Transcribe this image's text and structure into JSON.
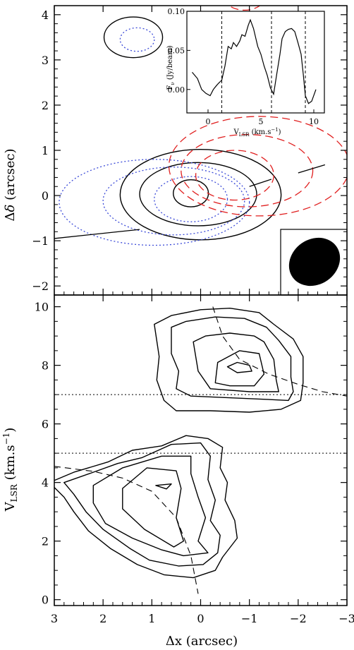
{
  "chart_data": [
    {
      "type": "contour",
      "panel": "top",
      "xlabel": "Δx (arcsec)",
      "ylabel": "Δδ (arcsec)",
      "xlim": [
        3,
        -3
      ],
      "ylim": [
        -2.2,
        4.2
      ],
      "xticks": [
        "3",
        "2",
        "1",
        "0",
        "−1",
        "−2",
        "−3"
      ],
      "yticks": [
        "−2",
        "−1",
        "0",
        "1",
        "2",
        "3",
        "4"
      ],
      "position_angle_line": [
        [
          3.0,
          -0.95
        ],
        [
          1.25,
          -0.75
        ],
        [
          -1.0,
          0.2
        ],
        [
          -1.45,
          0.36
        ],
        [
          -2.0,
          0.5
        ],
        [
          -2.55,
          0.68
        ]
      ],
      "series": [
        {
          "style": "solid",
          "color": "#000000",
          "contours": [
            {
              "cx": 0.2,
              "cy": 0.05,
              "rx": 0.36,
              "ry": 0.3
            },
            {
              "cx": 0.05,
              "cy": 0.03,
              "rx": 1.2,
              "ry": 0.7
            },
            {
              "cx": 0.0,
              "cy": 0.02,
              "rx": 1.65,
              "ry": 1.0
            },
            {
              "cx": 1.38,
              "cy": 3.5,
              "rx": 0.6,
              "ry": 0.45
            }
          ]
        },
        {
          "style": "dotted",
          "color": "#3c4bd8",
          "contours": [
            {
              "cx": 0.2,
              "cy": -0.08,
              "rx": 0.75,
              "ry": 0.5
            },
            {
              "cx": 0.55,
              "cy": -0.12,
              "rx": 1.45,
              "ry": 0.75
            },
            {
              "cx": 0.95,
              "cy": -0.15,
              "rx": 1.95,
              "ry": 0.95
            },
            {
              "cx": 1.3,
              "cy": 3.45,
              "rx": 0.35,
              "ry": 0.26
            }
          ]
        },
        {
          "style": "dashed",
          "color": "#e01e1e",
          "contours": [
            {
              "cx": -0.7,
              "cy": 0.45,
              "rx": 0.8,
              "ry": 0.55
            },
            {
              "cx": -0.95,
              "cy": 0.55,
              "rx": 1.35,
              "ry": 0.8
            },
            {
              "cx": -1.2,
              "cy": 0.65,
              "rx": 1.85,
              "ry": 1.1
            },
            {
              "cx": -0.9,
              "cy": 4.45,
              "rx": 0.45,
              "ry": 0.35
            }
          ]
        }
      ],
      "beam": {
        "cx": -2.4,
        "cy": -1.3,
        "rx": 0.5,
        "ry": 0.6
      },
      "inset": {
        "type": "line",
        "xlabel": "V_LSR (km.s⁻¹)",
        "ylabel": "F_ν (Jy/beam)",
        "xlim": [
          -2,
          11
        ],
        "ylim": [
          -0.03,
          0.1
        ],
        "xticks": [
          "0",
          "5",
          "10"
        ],
        "yticks": [
          "0.00",
          "0.05",
          "0.10"
        ],
        "vlines": [
          1.3,
          6.0,
          9.2
        ],
        "x": [
          -1.5,
          -1.0,
          -0.6,
          -0.2,
          0.2,
          0.5,
          0.8,
          1.0,
          1.3,
          1.6,
          1.9,
          2.2,
          2.4,
          2.7,
          3.0,
          3.2,
          3.5,
          3.8,
          4.0,
          4.3,
          4.7,
          5.0,
          5.3,
          5.6,
          5.9,
          6.2,
          6.5,
          6.8,
          7.0,
          7.3,
          7.6,
          7.9,
          8.2,
          8.5,
          8.8,
          9.0,
          9.2,
          9.5,
          9.8,
          10.2
        ],
        "y": [
          0.022,
          0.014,
          0.0,
          -0.005,
          -0.008,
          0.0,
          0.005,
          0.008,
          0.012,
          0.03,
          0.055,
          0.052,
          0.06,
          0.055,
          0.062,
          0.07,
          0.068,
          0.082,
          0.089,
          0.078,
          0.055,
          0.045,
          0.03,
          0.018,
          0.002,
          -0.006,
          0.02,
          0.045,
          0.065,
          0.074,
          0.077,
          0.078,
          0.074,
          0.06,
          0.045,
          0.02,
          -0.008,
          -0.018,
          -0.015,
          0.0
        ]
      }
    },
    {
      "type": "contour",
      "panel": "bottom",
      "xlabel": "Δx (arcsec)",
      "ylabel": "V_LSR (km.s⁻¹)",
      "xlim": [
        3,
        -3
      ],
      "ylim": [
        -0.2,
        10.4
      ],
      "xticks": [
        "3",
        "2",
        "1",
        "0",
        "−1",
        "−2",
        "−3"
      ],
      "yticks": [
        "0",
        "2",
        "4",
        "6",
        "8",
        "10"
      ],
      "hlines": [
        5.0,
        7.0
      ],
      "dashed_curve": [
        [
          3.0,
          4.55
        ],
        [
          2.2,
          4.38
        ],
        [
          1.6,
          4.15
        ],
        [
          1.0,
          3.7
        ],
        [
          0.5,
          2.8
        ],
        [
          0.2,
          1.5
        ],
        [
          0.05,
          0.2
        ]
      ],
      "dashed_curve_upper": [
        [
          -0.25,
          10.0
        ],
        [
          -0.45,
          9.0
        ],
        [
          -0.8,
          8.2
        ],
        [
          -1.4,
          7.7
        ],
        [
          -2.0,
          7.35
        ],
        [
          -2.5,
          7.1
        ],
        [
          -3.0,
          6.95
        ]
      ],
      "series": [
        {
          "style": "solid",
          "color": "#000000",
          "contours": [
            {
              "points": [
                [
                  0.92,
                  3.9
                ],
                [
                  0.6,
                  3.95
                ],
                [
                  0.7,
                  3.78
                ],
                [
                  0.92,
                  3.9
                ]
              ]
            },
            {
              "points": [
                [
                  -1.0,
                  8.0
                ],
                [
                  -0.75,
                  8.1
                ],
                [
                  -0.55,
                  7.95
                ],
                [
                  -0.75,
                  7.75
                ],
                [
                  -1.05,
                  7.8
                ],
                [
                  -1.0,
                  8.0
                ]
              ]
            },
            {
              "points": [
                [
                  1.6,
                  3.8
                ],
                [
                  1.1,
                  4.5
                ],
                [
                  0.5,
                  4.4
                ],
                [
                  0.4,
                  3.8
                ],
                [
                  0.5,
                  2.8
                ],
                [
                  0.35,
                  2.0
                ],
                [
                  0.55,
                  1.8
                ],
                [
                  1.15,
                  2.4
                ],
                [
                  1.6,
                  3.1
                ],
                [
                  1.6,
                  3.8
                ]
              ]
            },
            {
              "points": [
                [
                  -0.35,
                  8.1
                ],
                [
                  -0.8,
                  8.5
                ],
                [
                  -1.2,
                  8.4
                ],
                [
                  -1.3,
                  7.7
                ],
                [
                  -1.1,
                  7.3
                ],
                [
                  -0.6,
                  7.3
                ],
                [
                  -0.3,
                  7.4
                ],
                [
                  -0.35,
                  8.1
                ]
              ]
            }
          ]
        },
        {
          "style": "solid",
          "color": "#000000",
          "contours": [
            {
              "points": [
                [
                  2.2,
                  3.9
                ],
                [
                  1.6,
                  4.5
                ],
                [
                  0.8,
                  4.9
                ],
                [
                  0.2,
                  4.9
                ],
                [
                  0.2,
                  4.3
                ],
                [
                  0.05,
                  3.5
                ],
                [
                  -0.1,
                  2.8
                ],
                [
                  0.05,
                  2.0
                ],
                [
                  -0.15,
                  1.6
                ],
                [
                  0.35,
                  1.5
                ],
                [
                  0.8,
                  1.7
                ],
                [
                  1.4,
                  2.1
                ],
                [
                  1.95,
                  2.6
                ],
                [
                  2.2,
                  3.3
                ],
                [
                  2.2,
                  3.9
                ]
              ]
            },
            {
              "points": [
                [
                  0.15,
                  8.8
                ],
                [
                  -0.1,
                  9.0
                ],
                [
                  -0.6,
                  9.1
                ],
                [
                  -1.1,
                  9.0
                ],
                [
                  -1.3,
                  8.8
                ],
                [
                  -1.5,
                  8.2
                ],
                [
                  -1.55,
                  7.5
                ],
                [
                  -1.6,
                  7.1
                ],
                [
                  -1.0,
                  7.1
                ],
                [
                  -0.2,
                  7.2
                ],
                [
                  0.05,
                  7.8
                ],
                [
                  0.15,
                  8.8
                ]
              ]
            }
          ]
        },
        {
          "style": "solid",
          "color": "#000000",
          "contours": [
            {
              "points": [
                [
                  2.8,
                  4.0
                ],
                [
                  2.2,
                  4.35
                ],
                [
                  1.7,
                  4.65
                ],
                [
                  1.2,
                  4.85
                ],
                [
                  0.6,
                  5.3
                ],
                [
                  0.0,
                  5.35
                ],
                [
                  -0.2,
                  4.9
                ],
                [
                  -0.15,
                  4.1
                ],
                [
                  -0.3,
                  3.4
                ],
                [
                  -0.2,
                  2.7
                ],
                [
                  -0.4,
                  2.2
                ],
                [
                  -0.35,
                  1.6
                ],
                [
                  -0.05,
                  1.2
                ],
                [
                  0.45,
                  1.15
                ],
                [
                  1.05,
                  1.35
                ],
                [
                  1.45,
                  1.75
                ],
                [
                  2.0,
                  2.4
                ],
                [
                  2.35,
                  3.0
                ],
                [
                  2.6,
                  3.6
                ],
                [
                  2.8,
                  4.0
                ]
              ]
            },
            {
              "points": [
                [
                  0.6,
                  9.3
                ],
                [
                  0.3,
                  9.5
                ],
                [
                  -0.3,
                  9.65
                ],
                [
                  -0.9,
                  9.6
                ],
                [
                  -1.35,
                  9.3
                ],
                [
                  -1.6,
                  8.85
                ],
                [
                  -1.85,
                  8.3
                ],
                [
                  -1.85,
                  7.6
                ],
                [
                  -1.9,
                  7.1
                ],
                [
                  -1.8,
                  6.8
                ],
                [
                  -1.2,
                  6.85
                ],
                [
                  -0.5,
                  6.9
                ],
                [
                  0.2,
                  6.95
                ],
                [
                  0.5,
                  7.2
                ],
                [
                  0.45,
                  7.8
                ],
                [
                  0.6,
                  8.4
                ],
                [
                  0.6,
                  9.3
                ]
              ]
            }
          ]
        },
        {
          "style": "solid",
          "color": "#000000",
          "contours": [
            {
              "points": [
                [
                  3.1,
                  4.0
                ],
                [
                  2.6,
                  4.35
                ],
                [
                  1.9,
                  4.7
                ],
                [
                  1.4,
                  5.1
                ],
                [
                  0.8,
                  5.25
                ],
                [
                  0.3,
                  5.6
                ],
                [
                  -0.15,
                  5.5
                ],
                [
                  -0.45,
                  5.2
                ],
                [
                  -0.4,
                  4.5
                ],
                [
                  -0.55,
                  4.0
                ],
                [
                  -0.5,
                  3.4
                ],
                [
                  -0.7,
                  2.7
                ],
                [
                  -0.75,
                  2.1
                ],
                [
                  -0.45,
                  1.45
                ],
                [
                  -0.3,
                  1.0
                ],
                [
                  0.15,
                  0.75
                ],
                [
                  0.75,
                  0.85
                ],
                [
                  1.3,
                  1.2
                ],
                [
                  1.85,
                  1.75
                ],
                [
                  2.3,
                  2.35
                ],
                [
                  2.6,
                  3.0
                ],
                [
                  2.8,
                  3.5
                ],
                [
                  3.1,
                  4.0
                ]
              ]
            },
            {
              "points": [
                [
                  0.95,
                  9.4
                ],
                [
                  0.6,
                  9.7
                ],
                [
                  0.0,
                  9.9
                ],
                [
                  -0.6,
                  9.95
                ],
                [
                  -1.2,
                  9.8
                ],
                [
                  -1.5,
                  9.4
                ],
                [
                  -1.9,
                  8.9
                ],
                [
                  -2.1,
                  8.3
                ],
                [
                  -2.1,
                  7.4
                ],
                [
                  -2.05,
                  6.8
                ],
                [
                  -1.65,
                  6.5
                ],
                [
                  -1.0,
                  6.4
                ],
                [
                  -0.2,
                  6.45
                ],
                [
                  0.5,
                  6.45
                ],
                [
                  0.75,
                  6.8
                ],
                [
                  0.9,
                  7.5
                ],
                [
                  0.85,
                  8.3
                ],
                [
                  0.95,
                  9.4
                ]
              ]
            }
          ]
        }
      ]
    }
  ]
}
